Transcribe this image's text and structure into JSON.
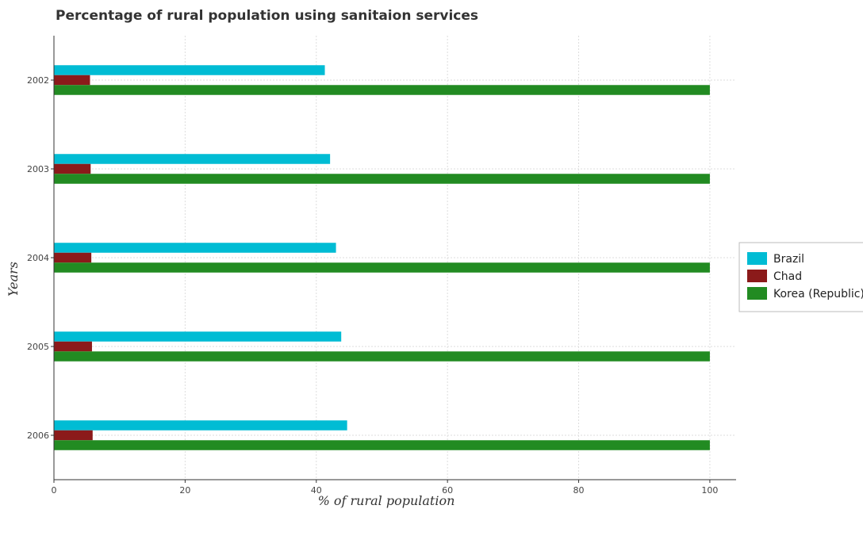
{
  "chart_data": {
    "type": "bar",
    "orientation": "horizontal",
    "title": "Percentage of rural population using sanitaion services",
    "xlabel": "% of rural population",
    "ylabel": "Years",
    "categories": [
      "2002",
      "2003",
      "2004",
      "2005",
      "2006"
    ],
    "xlim": [
      0,
      104
    ],
    "xticks": [
      0,
      20,
      40,
      60,
      80,
      100
    ],
    "grid": true,
    "legend_position": "right",
    "series": [
      {
        "name": "Brazil",
        "color": "#00bcd4",
        "values": [
          41.3,
          42.1,
          43.0,
          43.8,
          44.7
        ]
      },
      {
        "name": "Chad",
        "color": "#8b1a1a",
        "values": [
          5.5,
          5.6,
          5.7,
          5.8,
          5.9
        ]
      },
      {
        "name": "Korea (Republic)",
        "color": "#228b22",
        "values": [
          100,
          100,
          100,
          100,
          100
        ]
      }
    ]
  }
}
